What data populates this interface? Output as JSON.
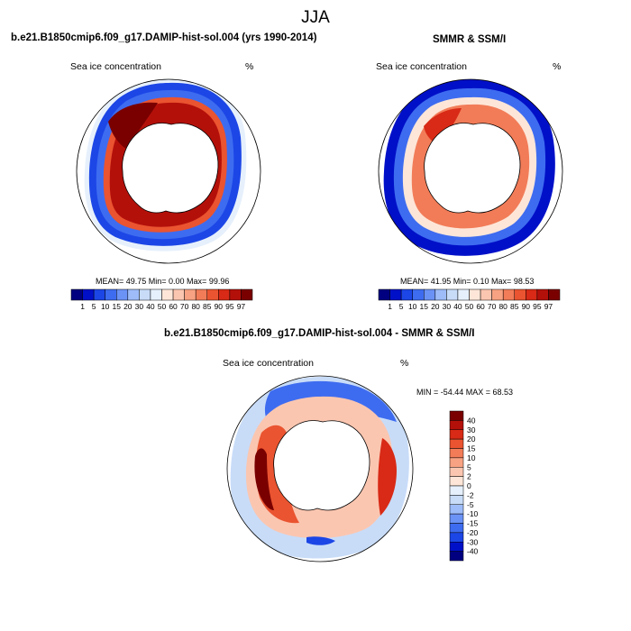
{
  "figure": {
    "season": "JJA",
    "top_left": {
      "title": "b.e21.B1850cmip6.f09_g17.DAMIP-hist-sol.004 (yrs 1990-2014)",
      "field": "Sea ice concentration",
      "unit": "%",
      "stats": "MEAN=  49.75  Min=   0.00  Max=  99.96"
    },
    "top_right": {
      "title": "SMMR & SSM/I",
      "field": "Sea ice concentration",
      "unit": "%",
      "stats": "MEAN=  41.95  Min=   0.10  Max=  98.53"
    },
    "bottom": {
      "title": "b.e21.B1850cmip6.f09_g17.DAMIP-hist-sol.004 - SMMR & SSM/I",
      "field": "Sea ice concentration",
      "unit": "%",
      "minmax": "MIN = -54.44 MAX =  68.53"
    }
  },
  "colorbars": {
    "concentration": {
      "labels": [
        "1",
        "5",
        "10",
        "15",
        "20",
        "30",
        "40",
        "50",
        "60",
        "70",
        "80",
        "85",
        "90",
        "95",
        "97"
      ],
      "colors": [
        "#000080",
        "#0010c8",
        "#1c46e6",
        "#3e6cf0",
        "#6b92f5",
        "#9dbcf8",
        "#c8dcf8",
        "#e6f0fc",
        "#fde6d8",
        "#fbc6b0",
        "#f7a282",
        "#f27c58",
        "#ea5430",
        "#d82a16",
        "#b4100a",
        "#7a0000"
      ]
    },
    "difference": {
      "labels": [
        "40",
        "30",
        "20",
        "15",
        "10",
        "5",
        "2",
        "0",
        "-2",
        "-5",
        "-10",
        "-15",
        "-20",
        "-30",
        "-40"
      ],
      "colors": [
        "#7a0000",
        "#b4100a",
        "#d82a16",
        "#ea5430",
        "#f27c58",
        "#f7a282",
        "#fbc6b0",
        "#fde6d8",
        "#e6f0fc",
        "#c8dcf8",
        "#9dbcf8",
        "#6b92f5",
        "#3e6cf0",
        "#1c46e6",
        "#0010c8",
        "#000080"
      ]
    }
  }
}
